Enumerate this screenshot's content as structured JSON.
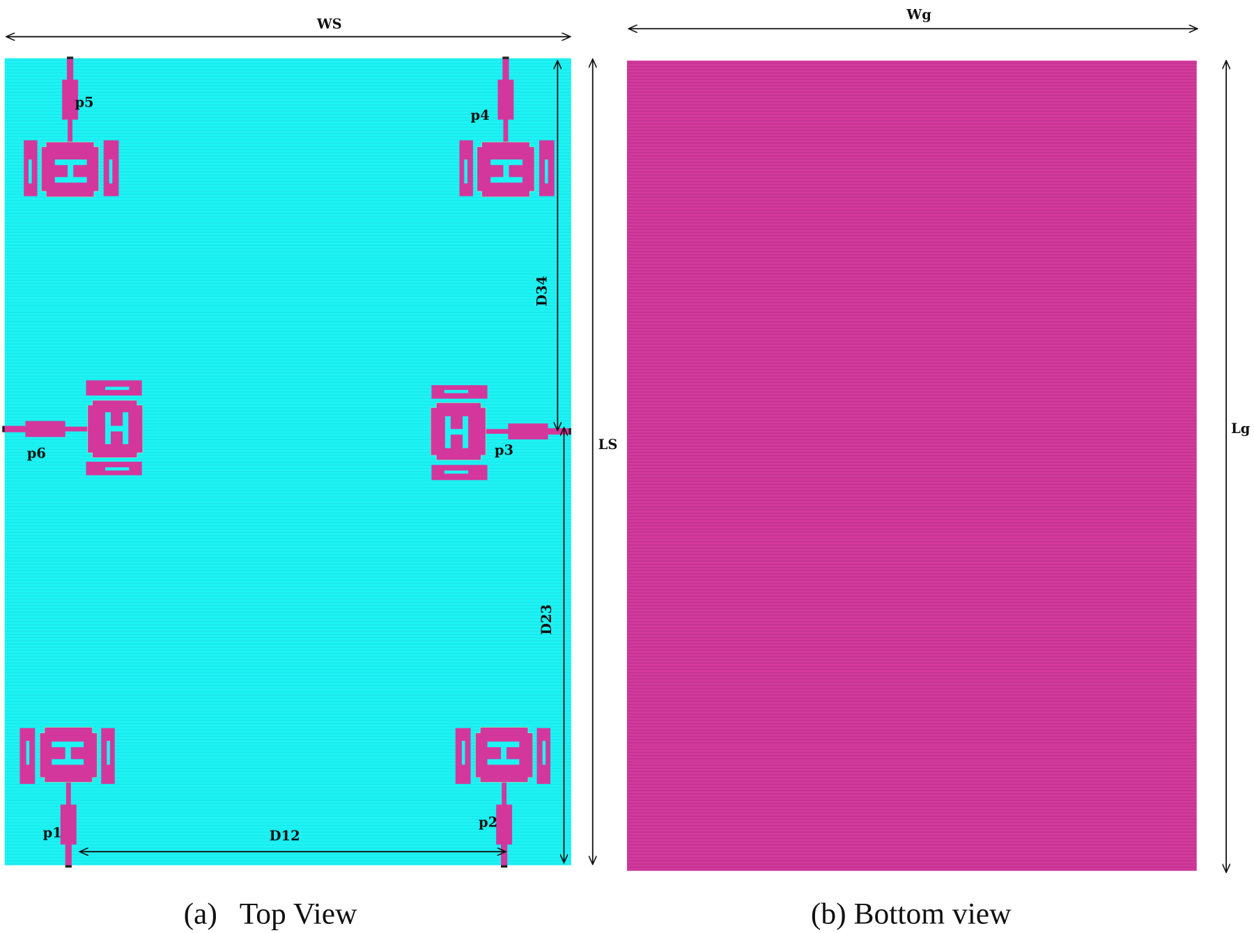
{
  "colors": {
    "substrate": "#1ef3f3",
    "copper": "#d4379c",
    "ground": "#d23a9c",
    "dimension_line": "#111111"
  },
  "top_view": {
    "caption": "(a)   Top View",
    "dimensions": {
      "width": "WS",
      "length": "LS",
      "d34": "D34",
      "d23": "D23",
      "d12": "D12"
    },
    "ports": [
      "p1",
      "p2",
      "p3",
      "p4",
      "p5",
      "p6"
    ]
  },
  "bottom_view": {
    "caption": "(b) Bottom view",
    "dimensions": {
      "width": "Wg",
      "length": "Lg"
    }
  }
}
